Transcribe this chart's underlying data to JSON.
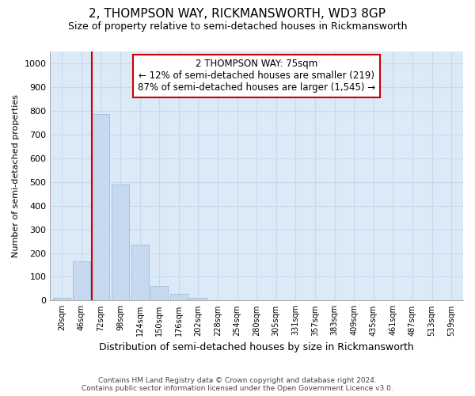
{
  "title": "2, THOMPSON WAY, RICKMANSWORTH, WD3 8GP",
  "subtitle": "Size of property relative to semi-detached houses in Rickmansworth",
  "xlabel": "Distribution of semi-detached houses by size in Rickmansworth",
  "ylabel": "Number of semi-detached properties",
  "categories": [
    "20sqm",
    "46sqm",
    "72sqm",
    "98sqm",
    "124sqm",
    "150sqm",
    "176sqm",
    "202sqm",
    "228sqm",
    "254sqm",
    "280sqm",
    "305sqm",
    "331sqm",
    "357sqm",
    "383sqm",
    "409sqm",
    "435sqm",
    "461sqm",
    "487sqm",
    "513sqm",
    "539sqm"
  ],
  "values": [
    10,
    165,
    785,
    490,
    235,
    62,
    28,
    13,
    0,
    0,
    0,
    0,
    0,
    0,
    0,
    0,
    0,
    0,
    0,
    0,
    0
  ],
  "bar_color": "#c6d9f0",
  "bar_edgecolor": "#a0bcd8",
  "grid_color": "#c8d8ed",
  "plot_bg_color": "#dce9f7",
  "figure_bg_color": "#ffffff",
  "property_bin_index": 2,
  "annotation_text_line1": "2 THOMPSON WAY: 75sqm",
  "annotation_text_line2": "← 12% of semi-detached houses are smaller (219)",
  "annotation_text_line3": "87% of semi-detached houses are larger (1,545) →",
  "annotation_box_facecolor": "#ffffff",
  "annotation_box_edgecolor": "#cc0000",
  "redline_color": "#cc0000",
  "ylim": [
    0,
    1050
  ],
  "yticks": [
    0,
    100,
    200,
    300,
    400,
    500,
    600,
    700,
    800,
    900,
    1000
  ],
  "footer_line1": "Contains HM Land Registry data © Crown copyright and database right 2024.",
  "footer_line2": "Contains public sector information licensed under the Open Government Licence v3.0."
}
